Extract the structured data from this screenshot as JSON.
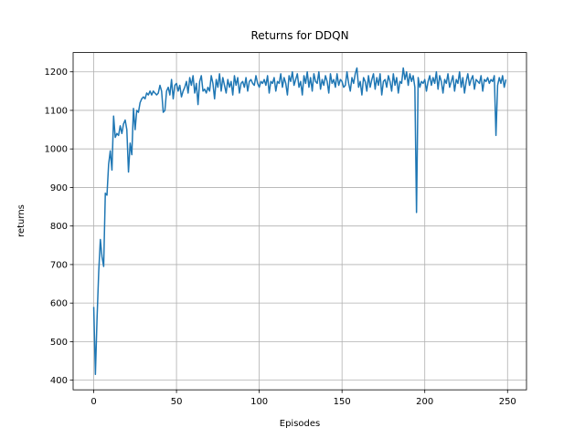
{
  "chart_data": {
    "type": "line",
    "title": "Returns for DDQN",
    "x_label": "Episodes",
    "y_label": "returns",
    "series": [
      {
        "name": "returns",
        "color": "#1f77b4",
        "values": [
          590,
          415,
          560,
          680,
          765,
          720,
          695,
          885,
          880,
          960,
          995,
          945,
          1085,
          1030,
          1040,
          1035,
          1060,
          1040,
          1065,
          1075,
          1050,
          940,
          1015,
          985,
          1105,
          1050,
          1100,
          1095,
          1120,
          1130,
          1135,
          1130,
          1145,
          1140,
          1150,
          1140,
          1150,
          1145,
          1140,
          1145,
          1165,
          1150,
          1095,
          1100,
          1150,
          1160,
          1140,
          1180,
          1130,
          1165,
          1170,
          1150,
          1165,
          1135,
          1150,
          1160,
          1175,
          1145,
          1185,
          1165,
          1190,
          1145,
          1170,
          1115,
          1175,
          1190,
          1150,
          1155,
          1145,
          1160,
          1150,
          1190,
          1170,
          1130,
          1180,
          1160,
          1195,
          1150,
          1185,
          1165,
          1145,
          1180,
          1160,
          1175,
          1140,
          1190,
          1165,
          1185,
          1145,
          1170,
          1175,
          1160,
          1185,
          1150,
          1175,
          1180,
          1170,
          1165,
          1190,
          1170,
          1160,
          1175,
          1170,
          1180,
          1165,
          1190,
          1145,
          1175,
          1170,
          1185,
          1150,
          1175,
          1170,
          1195,
          1160,
          1185,
          1170,
          1140,
          1190,
          1175,
          1200,
          1165,
          1180,
          1195,
          1160,
          1175,
          1140,
          1190,
          1170,
          1200,
          1160,
          1185,
          1150,
          1195,
          1175,
          1170,
          1200,
          1155,
          1180,
          1165,
          1190,
          1175,
          1145,
          1195,
          1170,
          1180,
          1160,
          1195,
          1165,
          1180,
          1175,
          1160,
          1165,
          1200,
          1170,
          1150,
          1185,
          1170,
          1195,
          1210,
          1160,
          1175,
          1140,
          1185,
          1175,
          1150,
          1190,
          1160,
          1180,
          1195,
          1155,
          1185,
          1165,
          1195,
          1140,
          1175,
          1180,
          1160,
          1190,
          1175,
          1150,
          1195,
          1165,
          1185,
          1145,
          1175,
          1170,
          1210,
          1180,
          1200,
          1165,
          1195,
          1175,
          1190,
          1160,
          835,
          1185,
          1160,
          1175,
          1170,
          1180,
          1150,
          1175,
          1190,
          1165,
          1185,
          1170,
          1200,
          1155,
          1190,
          1175,
          1145,
          1180,
          1170,
          1195,
          1160,
          1175,
          1190,
          1150,
          1180,
          1170,
          1200,
          1160,
          1185,
          1145,
          1175,
          1195,
          1165,
          1180,
          1190,
          1155,
          1180,
          1175,
          1170,
          1190,
          1150,
          1180,
          1175,
          1185,
          1170,
          1180,
          1175,
          1190,
          1035,
          1165,
          1185,
          1170,
          1190,
          1160,
          1180
        ]
      }
    ],
    "xlim": [
      -12.45,
      261.45
    ],
    "ylim": [
      375,
      1250
    ],
    "xticks": [
      0,
      50,
      100,
      150,
      200,
      250
    ],
    "yticks": [
      400,
      500,
      600,
      700,
      800,
      900,
      1000,
      1100,
      1200
    ],
    "grid": true
  }
}
